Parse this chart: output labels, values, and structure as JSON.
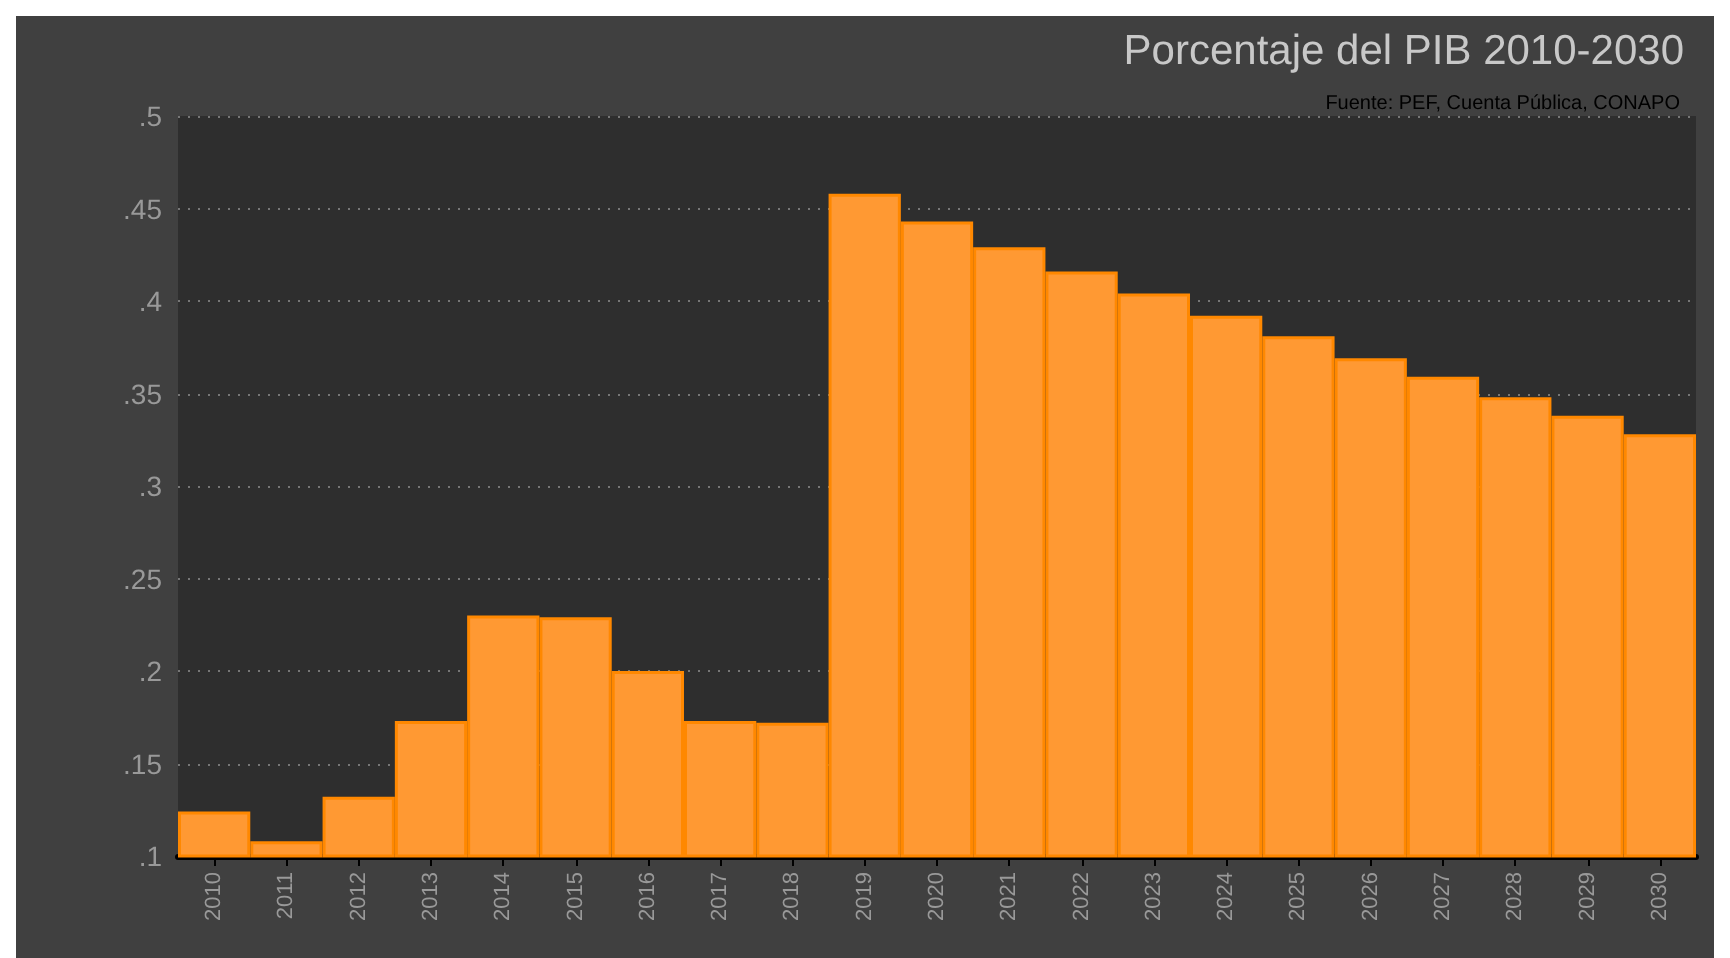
{
  "chart_data": {
    "type": "bar",
    "title": "Porcentaje del PIB 2010-2030",
    "annotations": [
      "Fuente: PEF, Cuenta Pública, CONAPO"
    ],
    "categories": [
      "2010",
      "2011",
      "2012",
      "2013",
      "2014",
      "2015",
      "2016",
      "2017",
      "2018",
      "2019",
      "2020",
      "2021",
      "2022",
      "2023",
      "2024",
      "2025",
      "2026",
      "2027",
      "2028",
      "2029",
      "2030"
    ],
    "values": [
      0.124,
      0.108,
      0.132,
      0.173,
      0.23,
      0.229,
      0.2,
      0.173,
      0.172,
      0.458,
      0.443,
      0.429,
      0.416,
      0.404,
      0.392,
      0.381,
      0.369,
      0.359,
      0.348,
      0.338,
      0.328
    ],
    "color": "#ff9933",
    "ylim": [
      0.1,
      0.5
    ],
    "yticks": [
      {
        "value": 0.1,
        "label": ".1"
      },
      {
        "value": 0.15,
        "label": ".15"
      },
      {
        "value": 0.2,
        "label": ".2"
      },
      {
        "value": 0.25,
        "label": ".25"
      },
      {
        "value": 0.3,
        "label": ".3"
      },
      {
        "value": 0.35,
        "label": ".35"
      },
      {
        "value": 0.4,
        "label": ".4"
      },
      {
        "value": 0.45,
        "label": ".45"
      },
      {
        "value": 0.5,
        "label": ".5"
      }
    ],
    "grid": "y"
  }
}
